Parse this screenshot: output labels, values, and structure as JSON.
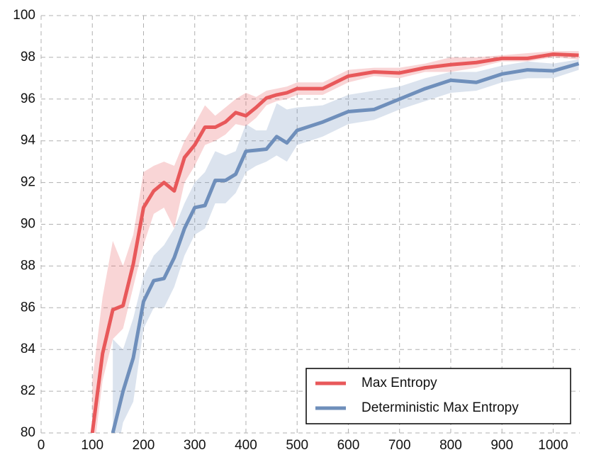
{
  "chart_data": {
    "type": "line",
    "x": [
      100,
      120,
      140,
      160,
      180,
      200,
      220,
      240,
      260,
      280,
      300,
      320,
      340,
      360,
      380,
      400,
      420,
      440,
      460,
      480,
      500,
      550,
      600,
      650,
      700,
      750,
      800,
      850,
      900,
      950,
      1000,
      1050
    ],
    "series": [
      {
        "name": "Max Entropy",
        "color": "#e8585a",
        "values": [
          80.0,
          83.8,
          85.9,
          86.1,
          88.1,
          90.8,
          91.6,
          92.0,
          91.6,
          93.2,
          93.8,
          94.65,
          94.65,
          94.9,
          95.35,
          95.2,
          95.6,
          96.05,
          96.2,
          96.3,
          96.5,
          96.5,
          97.1,
          97.3,
          97.25,
          97.5,
          97.65,
          97.75,
          97.95,
          97.95,
          98.15,
          98.1
        ],
        "lower": [
          78.5,
          82.5,
          84.5,
          85.0,
          87.0,
          89.0,
          90.5,
          90.8,
          89.8,
          92.0,
          92.8,
          93.8,
          94.0,
          94.3,
          94.8,
          94.7,
          95.1,
          95.7,
          95.9,
          96.0,
          96.2,
          96.2,
          96.8,
          97.1,
          97.0,
          97.3,
          97.3,
          97.5,
          97.8,
          97.8,
          98.0,
          97.9
        ],
        "upper": [
          82.5,
          86.5,
          89.2,
          88.0,
          89.5,
          92.5,
          92.8,
          93.0,
          92.8,
          94.0,
          94.8,
          95.7,
          95.2,
          95.6,
          96.0,
          96.3,
          96.1,
          96.4,
          96.5,
          96.6,
          96.8,
          96.8,
          97.4,
          97.5,
          97.5,
          97.7,
          98.0,
          98.0,
          98.1,
          98.2,
          98.3,
          98.3
        ]
      },
      {
        "name": "Deterministic Max Entropy",
        "color": "#6f8fbb",
        "values": [
          null,
          null,
          80.0,
          82.0,
          83.6,
          86.3,
          87.3,
          87.4,
          88.4,
          89.8,
          90.8,
          90.9,
          92.1,
          92.1,
          92.4,
          93.5,
          93.55,
          93.6,
          94.2,
          93.9,
          94.5,
          94.9,
          95.4,
          95.5,
          96.0,
          96.5,
          96.9,
          96.8,
          97.2,
          97.4,
          97.35,
          97.7
        ],
        "lower": [
          null,
          null,
          78.0,
          80.5,
          81.5,
          85.0,
          86.0,
          86.0,
          87.0,
          88.5,
          89.5,
          89.8,
          91.0,
          91.0,
          91.5,
          92.5,
          92.8,
          93.0,
          93.3,
          93.0,
          93.8,
          94.2,
          94.8,
          95.0,
          95.5,
          95.9,
          96.3,
          96.4,
          96.8,
          97.0,
          97.0,
          97.4
        ],
        "upper": [
          null,
          null,
          84.5,
          84.0,
          85.5,
          87.5,
          88.5,
          89.0,
          89.8,
          91.0,
          92.0,
          92.5,
          93.5,
          93.3,
          93.5,
          94.8,
          94.5,
          94.5,
          95.8,
          95.5,
          95.6,
          95.7,
          96.2,
          96.4,
          96.6,
          97.0,
          97.3,
          97.3,
          97.6,
          97.8,
          97.7,
          97.9
        ]
      }
    ],
    "xlim": [
      0,
      1052
    ],
    "ylim": [
      80,
      100
    ],
    "xticks": [
      0,
      100,
      200,
      300,
      400,
      500,
      600,
      700,
      800,
      900,
      1000
    ],
    "yticks": [
      80,
      82,
      84,
      86,
      88,
      90,
      92,
      94,
      96,
      98,
      100
    ],
    "grid": true,
    "legend": "lower right"
  }
}
